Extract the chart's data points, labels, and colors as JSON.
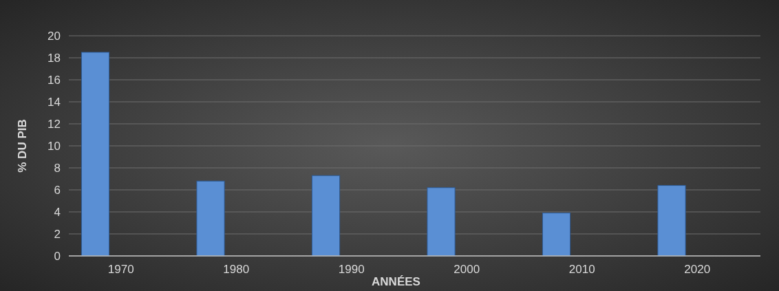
{
  "chart_data": {
    "type": "bar",
    "xlabel": "ANNÉES",
    "ylabel": "% DU PIB",
    "categories": [
      "1970",
      "1980",
      "1990",
      "2000",
      "2010",
      "2020"
    ],
    "values": [
      18.5,
      6.8,
      7.3,
      6.2,
      3.9,
      6.4
    ],
    "color": "#5a8fd4",
    "ylim": [
      0,
      20
    ],
    "yticks": [
      0,
      2,
      4,
      6,
      8,
      10,
      12,
      14,
      16,
      18,
      20
    ],
    "grid": "y"
  }
}
